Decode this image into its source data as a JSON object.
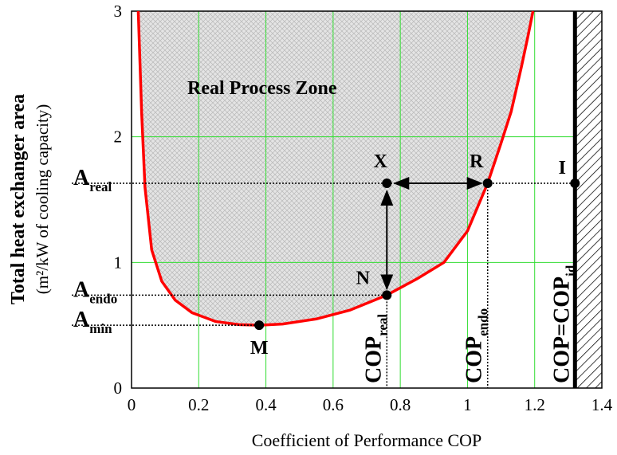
{
  "chart_data": {
    "type": "line",
    "xlabel": "Coefficient of Performance COP",
    "ylabel": "Total heat exchanger area",
    "ylabel2": "(m²/kW of cooling capacity)",
    "xlim": [
      0,
      1.4
    ],
    "ylim": [
      0,
      3
    ],
    "xticks": [
      0,
      0.2,
      0.4,
      0.6,
      0.8,
      1,
      1.2,
      1.4
    ],
    "yticks": [
      0,
      1,
      2,
      3
    ],
    "grid": true,
    "series": [
      {
        "color": "#ff0000",
        "x": [
          0.02,
          0.03,
          0.04,
          0.06,
          0.09,
          0.13,
          0.18,
          0.25,
          0.32,
          0.38,
          0.45,
          0.55,
          0.65,
          0.76,
          0.85,
          0.93,
          1.0,
          1.06,
          1.1,
          1.13,
          1.16,
          1.18,
          1.195
        ],
        "values": [
          3.0,
          2.2,
          1.6,
          1.1,
          0.85,
          0.7,
          0.6,
          0.53,
          0.505,
          0.5,
          0.51,
          0.55,
          0.62,
          0.74,
          0.87,
          1.0,
          1.25,
          1.63,
          1.95,
          2.2,
          2.55,
          2.8,
          3.0
        ]
      }
    ],
    "cop_id": 1.32,
    "annotation": "Real Process Zone",
    "points": [
      {
        "label": "M",
        "x": 0.38,
        "y": 0.5
      },
      {
        "label": "N",
        "x": 0.76,
        "y": 0.74
      },
      {
        "label": "X",
        "x": 0.76,
        "y": 1.63
      },
      {
        "label": "R",
        "x": 1.06,
        "y": 1.63
      },
      {
        "label": "I",
        "x": 1.32,
        "y": 1.63
      }
    ],
    "level_labels": [
      {
        "main": "A",
        "sub": "real",
        "y": 1.63
      },
      {
        "main": "A",
        "sub": "endo",
        "y": 0.74
      },
      {
        "main": "A",
        "sub": "min",
        "y": 0.5
      }
    ],
    "cop_labels": [
      {
        "main": "COP",
        "sub": "real",
        "x": 0.76
      },
      {
        "main": "COP",
        "sub": "endo",
        "x": 1.06
      },
      {
        "main": "COP=COP",
        "sub": "id",
        "x": 1.32
      }
    ]
  }
}
